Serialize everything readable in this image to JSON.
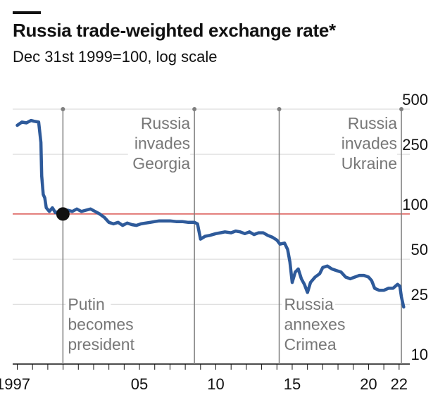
{
  "title": "Russia trade-weighted exchange rate*",
  "subtitle": "Dec 31st 1999=100, log scale",
  "colors": {
    "line": "#2e5a9a",
    "reference": "#d9534f",
    "grid": "#d6d6d6",
    "event": "#7f7f7f",
    "marker": "#111111"
  },
  "chart_data": {
    "type": "line",
    "title": "Russia trade-weighted exchange rate*",
    "subtitle": "Dec 31st 1999=100, log scale",
    "xlabel": "",
    "ylabel": "",
    "yscale": "log",
    "ylim": [
      10,
      500
    ],
    "xlim": [
      1996.7,
      2022.7
    ],
    "yticks": [
      10,
      25,
      50,
      100,
      250,
      500
    ],
    "ytick_labels": [
      "10",
      "25",
      "50",
      "100",
      "250",
      "500"
    ],
    "xticks": [
      1997,
      2005,
      2010,
      2015,
      2020,
      2022
    ],
    "xtick_labels": [
      "1997",
      "05",
      "10",
      "15",
      "20",
      "22"
    ],
    "reference_line": 100,
    "highlight_point": {
      "x": 1999.99,
      "y": 100
    },
    "events": [
      {
        "x": 1999.99,
        "label_lines": [
          "Putin",
          "becomes",
          "president"
        ],
        "label_position": "bottom"
      },
      {
        "x": 2008.6,
        "label_lines": [
          "Russia",
          "invades",
          "Georgia"
        ],
        "label_position": "top"
      },
      {
        "x": 2014.15,
        "label_lines": [
          "Russia",
          "annexes",
          "Crimea"
        ],
        "label_position": "bottom"
      },
      {
        "x": 2022.15,
        "label_lines": [
          "Russia",
          "invades",
          "Ukraine"
        ],
        "label_position": "top"
      }
    ],
    "series": [
      {
        "values": [
          [
            1997.0,
            390
          ],
          [
            1997.3,
            410
          ],
          [
            1997.6,
            405
          ],
          [
            1997.9,
            420
          ],
          [
            1998.1,
            415
          ],
          [
            1998.4,
            410
          ],
          [
            1998.55,
            300
          ],
          [
            1998.6,
            180
          ],
          [
            1998.7,
            135
          ],
          [
            1998.8,
            128
          ],
          [
            1998.9,
            110
          ],
          [
            1999.1,
            104
          ],
          [
            1999.3,
            110
          ],
          [
            1999.5,
            102
          ],
          [
            1999.7,
            104
          ],
          [
            2000.0,
            100
          ],
          [
            2000.3,
            106
          ],
          [
            2000.6,
            104
          ],
          [
            2000.9,
            108
          ],
          [
            2001.2,
            104
          ],
          [
            2001.5,
            106
          ],
          [
            2001.8,
            108
          ],
          [
            2002.1,
            104
          ],
          [
            2002.4,
            100
          ],
          [
            2002.7,
            95
          ],
          [
            2003.0,
            88
          ],
          [
            2003.3,
            86
          ],
          [
            2003.6,
            88
          ],
          [
            2003.9,
            84
          ],
          [
            2004.2,
            87
          ],
          [
            2004.5,
            85
          ],
          [
            2004.8,
            84
          ],
          [
            2005.1,
            86
          ],
          [
            2005.4,
            87
          ],
          [
            2005.7,
            88
          ],
          [
            2006.0,
            89
          ],
          [
            2006.3,
            90
          ],
          [
            2006.6,
            90
          ],
          [
            2007.0,
            90
          ],
          [
            2007.4,
            89
          ],
          [
            2007.8,
            89
          ],
          [
            2008.2,
            88
          ],
          [
            2008.6,
            88
          ],
          [
            2008.8,
            86
          ],
          [
            2009.0,
            68
          ],
          [
            2009.3,
            71
          ],
          [
            2009.6,
            72
          ],
          [
            2010.0,
            74
          ],
          [
            2010.3,
            75
          ],
          [
            2010.6,
            76
          ],
          [
            2011.0,
            75
          ],
          [
            2011.3,
            77
          ],
          [
            2011.6,
            76
          ],
          [
            2011.9,
            74
          ],
          [
            2012.2,
            76
          ],
          [
            2012.5,
            73
          ],
          [
            2012.8,
            75
          ],
          [
            2013.1,
            75
          ],
          [
            2013.4,
            72
          ],
          [
            2013.7,
            70
          ],
          [
            2014.0,
            67
          ],
          [
            2014.2,
            63
          ],
          [
            2014.5,
            64
          ],
          [
            2014.7,
            58
          ],
          [
            2014.85,
            48
          ],
          [
            2015.0,
            35
          ],
          [
            2015.2,
            41
          ],
          [
            2015.4,
            43
          ],
          [
            2015.6,
            37
          ],
          [
            2015.8,
            34
          ],
          [
            2016.0,
            30
          ],
          [
            2016.2,
            35
          ],
          [
            2016.5,
            38
          ],
          [
            2016.8,
            40
          ],
          [
            2017.0,
            44
          ],
          [
            2017.3,
            45
          ],
          [
            2017.6,
            43
          ],
          [
            2017.9,
            42
          ],
          [
            2018.2,
            41
          ],
          [
            2018.5,
            38
          ],
          [
            2018.8,
            37
          ],
          [
            2019.1,
            38
          ],
          [
            2019.4,
            39
          ],
          [
            2019.7,
            39
          ],
          [
            2020.0,
            38
          ],
          [
            2020.2,
            36
          ],
          [
            2020.4,
            32
          ],
          [
            2020.7,
            31
          ],
          [
            2021.0,
            31
          ],
          [
            2021.3,
            32
          ],
          [
            2021.6,
            32
          ],
          [
            2021.9,
            34
          ],
          [
            2022.05,
            33
          ],
          [
            2022.15,
            28
          ],
          [
            2022.3,
            24
          ]
        ]
      }
    ]
  }
}
